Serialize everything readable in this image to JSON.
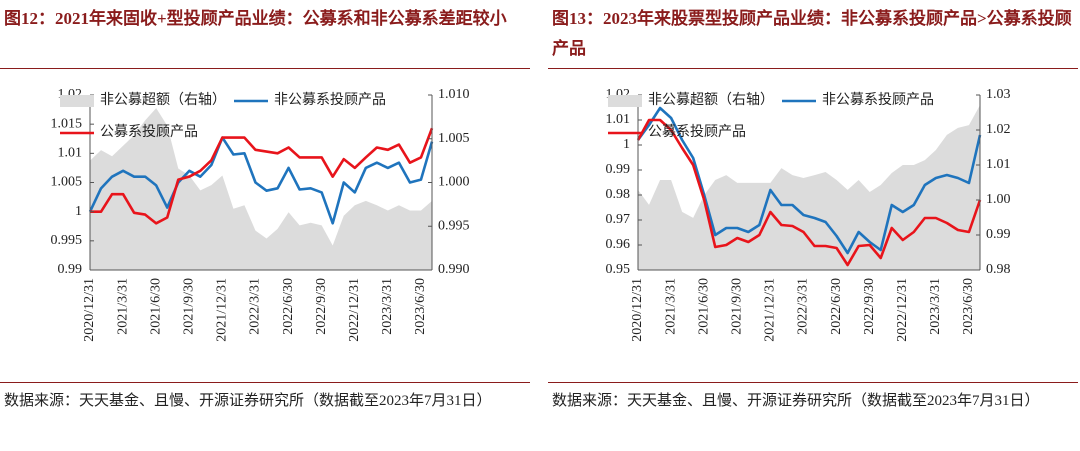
{
  "chart_data": [
    {
      "type": "line",
      "title": "图12：2021年来固收+型投顾产品业绩：公募系和非公募系差距较小",
      "source": "数据来源：天天基金、且慢、开源证券研究所（数据截至2023年7月31日）",
      "legend": "upper left",
      "categories": [
        "2020/12/31",
        null,
        null,
        "2021/3/31",
        null,
        null,
        "2021/6/30",
        null,
        null,
        "2021/9/30",
        null,
        null,
        "2021/12/31",
        null,
        null,
        "2022/3/31",
        null,
        null,
        "2022/6/30",
        null,
        null,
        "2022/9/30",
        null,
        null,
        "2022/12/31",
        null,
        null,
        "2023/3/31",
        null,
        null,
        "2023/6/30",
        null
      ],
      "ylim": [
        0.99,
        1.02
      ],
      "yticks": [
        0.99,
        0.995,
        {
          "value": 1,
          "label": "1"
        },
        1.005,
        1.01,
        1.015,
        1.02
      ],
      "y2lim": [
        0.99,
        1.01
      ],
      "y2ticks": [
        {
          "value": 0.99,
          "label": "0.990"
        },
        0.995,
        {
          "value": 1,
          "label": "1.000"
        },
        1.005,
        {
          "value": 1.01,
          "label": "1.010"
        }
      ],
      "series": [
        {
          "name": "非公募超额（右轴）",
          "type": "area",
          "axis": "y2",
          "color": "#dcdcdc",
          "values": [
            1.0025,
            1.0037,
            1.003,
            1.0042,
            1.0054,
            1.0071,
            1.0085,
            1.0065,
            1.0016,
            1.0008,
            0.9991,
            0.9997,
            1.0008,
            0.997,
            0.9974,
            0.9945,
            0.9936,
            0.9947,
            0.9966,
            0.9951,
            0.9954,
            0.9951,
            0.9928,
            0.9962,
            0.9974,
            0.9979,
            0.9974,
            0.9968,
            0.9974,
            0.9968,
            0.9968,
            0.9979
          ]
        },
        {
          "name": "非公募系投顾产品",
          "type": "line",
          "color": "#1f74bd",
          "values": [
            1.0,
            1.004,
            1.006,
            1.007,
            1.006,
            1.006,
            1.0045,
            1.0007,
            1.005,
            1.007,
            1.006,
            1.008,
            1.0127,
            1.0098,
            1.01,
            1.005,
            1.0036,
            1.004,
            1.0075,
            1.0038,
            1.004,
            1.0033,
            0.998,
            1.005,
            1.0033,
            1.0075,
            1.0084,
            1.0075,
            1.0084,
            1.005,
            1.0055,
            1.012
          ]
        },
        {
          "name": "公募系投顾产品",
          "type": "line",
          "color": "#e8141b",
          "values": [
            1.0,
            1.0,
            1.003,
            1.003,
            0.9998,
            0.9995,
            0.998,
            0.999,
            1.0055,
            1.006,
            1.007,
            1.0088,
            1.0127,
            1.0127,
            1.0127,
            1.0106,
            1.0103,
            1.01,
            1.011,
            1.0093,
            1.0093,
            1.0093,
            1.006,
            1.009,
            1.0075,
            1.0093,
            1.011,
            1.0106,
            1.0115,
            1.0084,
            1.0093,
            1.0143
          ]
        }
      ]
    },
    {
      "type": "line",
      "title": "图13：2023年来股票型投顾产品业绩：非公募系投顾产品>公募系投顾产品",
      "source": "数据来源：天天基金、且慢、开源证券研究所（数据截至2023年7月31日）",
      "legend": "upper left",
      "categories": [
        "2020/12/31",
        null,
        null,
        "2021/3/31",
        null,
        null,
        "2021/6/30",
        null,
        null,
        "2021/9/30",
        null,
        null,
        "2021/12/31",
        null,
        null,
        "2022/3/31",
        null,
        null,
        "2022/6/30",
        null,
        null,
        "2022/9/30",
        null,
        null,
        "2022/12/31",
        null,
        null,
        "2023/3/31",
        null,
        null,
        "2023/6/30",
        null
      ],
      "ylim": [
        0.95,
        1.02
      ],
      "yticks": [
        0.95,
        0.96,
        0.97,
        0.98,
        0.99,
        {
          "value": 1,
          "label": "1"
        },
        1.01,
        1.02
      ],
      "y2lim": [
        0.98,
        1.03
      ],
      "y2ticks": [
        0.98,
        0.99,
        {
          "value": 1,
          "label": "1.00"
        },
        1.01,
        1.02,
        1.03
      ],
      "series": [
        {
          "name": "非公募超额（右轴）",
          "type": "area",
          "axis": "y2",
          "color": "#dcdcdc",
          "values": [
            1.0029,
            0.9986,
            1.0057,
            1.0057,
            0.9966,
            0.9949,
            1.0014,
            1.0057,
            1.0071,
            1.0049,
            1.0049,
            1.0049,
            1.0049,
            1.0091,
            1.0071,
            1.0063,
            1.0071,
            1.008,
            1.0057,
            1.0029,
            1.0057,
            1.0023,
            1.0043,
            1.0077,
            1.01,
            1.01,
            1.0114,
            1.0143,
            1.0186,
            1.0206,
            1.0214,
            1.0271
          ]
        },
        {
          "name": "非公募系投顾产品",
          "type": "line",
          "color": "#1f74bd",
          "values": [
            1.002,
            1.008,
            1.0148,
            1.0108,
            1.002,
            0.9948,
            0.98,
            0.964,
            0.9668,
            0.9668,
            0.9652,
            0.968,
            0.982,
            0.976,
            0.976,
            0.972,
            0.9708,
            0.9692,
            0.9636,
            0.9568,
            0.9652,
            0.9612,
            0.958,
            0.976,
            0.9732,
            0.976,
            0.984,
            0.9868,
            0.988,
            0.9868,
            0.9848,
            1.004
          ]
        },
        {
          "name": "公募系投顾产品",
          "type": "line",
          "color": "#e8141b",
          "values": [
            1.002,
            1.01,
            1.01,
            1.006,
            0.9988,
            0.992,
            0.978,
            0.9592,
            0.96,
            0.9628,
            0.9612,
            0.964,
            0.9732,
            0.968,
            0.9676,
            0.9652,
            0.9596,
            0.9596,
            0.9588,
            0.952,
            0.9596,
            0.96,
            0.9548,
            0.9668,
            0.962,
            0.9652,
            0.9708,
            0.9708,
            0.9688,
            0.966,
            0.9652,
            0.978
          ]
        }
      ]
    }
  ]
}
